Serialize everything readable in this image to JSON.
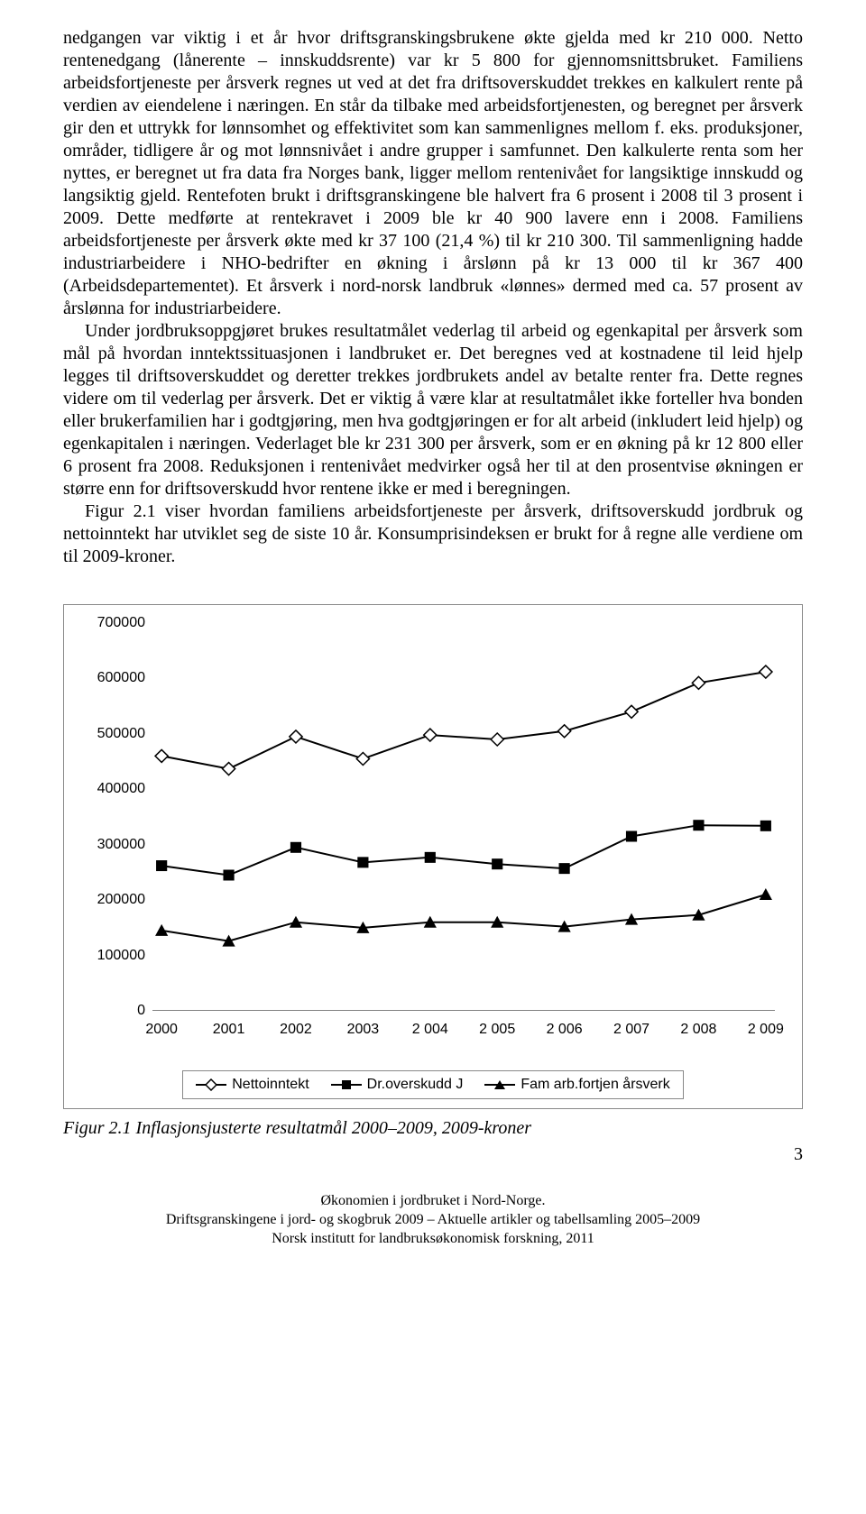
{
  "paragraphs": {
    "p1": "nedgangen var viktig i et år hvor driftsgranskingsbrukene økte gjelda med kr 210 000. Netto rentenedgang (lånerente – innskuddsrente) var kr 5 800 for gjennomsnittsbruket. Familiens arbeidsfortjeneste per årsverk regnes ut ved at det fra driftsoverskuddet trekkes en kalkulert rente på verdien av eiendelene i næringen. En står da tilbake med arbeidsfortjenesten, og beregnet per årsverk gir den et uttrykk for lønnsomhet og effektivitet som kan sammenlignes mellom f. eks. produksjoner, områder, tidligere år og mot lønnsnivået i andre grupper i samfunnet. Den kalkulerte renta som her nyttes, er beregnet ut fra data fra Norges bank, ligger mellom rentenivået for langsiktige innskudd og langsiktig gjeld. Rentefoten brukt i driftsgranskingene ble halvert fra 6 prosent i 2008 til 3 prosent i 2009. Dette medførte at rentekravet i 2009 ble kr 40 900 lavere enn i 2008. Familiens arbeidsfortjeneste per årsverk økte med kr 37 100 (21,4 %) til kr 210 300. Til sammenligning hadde industriarbeidere i NHO-bedrifter en økning i årslønn på kr 13 000 til kr 367 400 (Arbeidsdepartementet). Et årsverk i nord-norsk landbruk «lønnes» dermed med ca. 57 prosent av årslønna for industriarbeidere.",
    "p2": "Under jordbruksoppgjøret brukes resultatmålet vederlag til arbeid og egenkapital per årsverk som mål på hvordan inntektssituasjonen i landbruket er. Det beregnes ved at kostnadene til leid hjelp legges til driftsoverskuddet og deretter trekkes jordbrukets andel av betalte renter fra. Dette regnes videre om til vederlag per årsverk. Det er viktig å være klar at resultatmålet ikke forteller hva bonden eller brukerfamilien har i godtgjøring, men hva godtgjøringen er for alt arbeid (inkludert leid hjelp) og egenkapitalen i næringen. Vederlaget ble kr 231 300 per årsverk, som er en økning på kr 12 800 eller 6 prosent fra 2008. Reduksjonen i rentenivået medvirker også her til at den prosentvise økningen er større enn for driftsoverskudd hvor rentene ikke er med i beregningen.",
    "p3": "Figur 2.1 viser hvordan familiens arbeidsfortjeneste per årsverk, driftsoverskudd jordbruk og nettoinntekt har utviklet seg de siste 10 år. Konsumprisindeksen er brukt for å regne alle verdiene om til 2009-kroner."
  },
  "chart": {
    "type": "line",
    "ylim": [
      0,
      700000
    ],
    "ytick_step": 100000,
    "yticks": [
      "0",
      "100000",
      "200000",
      "300000",
      "400000",
      "500000",
      "600000",
      "700000"
    ],
    "xticks": [
      "2000",
      "2001",
      "2002",
      "2003",
      "2 004",
      "2 005",
      "2 006",
      "2 007",
      "2 008",
      "2 009"
    ],
    "background_color": "#ffffff",
    "border_color": "#888888",
    "axis_color": "#000000",
    "label_fontsize": 16,
    "label_font": "Arial",
    "series": {
      "nettoinntekt": {
        "label": "Nettoinntekt",
        "marker": "diamond-open",
        "color": "#000000",
        "values": [
          460000,
          437000,
          495000,
          455000,
          498000,
          490000,
          505000,
          540000,
          592000,
          612000
        ]
      },
      "droverskudd": {
        "label": "Dr.overskudd J",
        "marker": "square-filled",
        "color": "#000000",
        "values": [
          262000,
          245000,
          295000,
          268000,
          277000,
          265000,
          257000,
          315000,
          335000,
          334000
        ]
      },
      "famarb": {
        "label": "Fam arb.fortjen årsverk",
        "marker": "triangle-filled",
        "color": "#000000",
        "values": [
          145000,
          126000,
          160000,
          150000,
          160000,
          160000,
          152000,
          165000,
          173000,
          210000
        ]
      }
    }
  },
  "caption": "Figur 2.1 Inflasjonsjusterte resultatmål 2000–2009, 2009-kroner",
  "footer": {
    "line1": "Økonomien i jordbruket i Nord-Norge.",
    "line2": "Driftsgranskingene i jord- og skogbruk 2009 – Aktuelle artikler og tabellsamling 2005–2009",
    "line3": "Norsk institutt for landbruksøkonomisk forskning, 2011"
  },
  "page_number": "3"
}
